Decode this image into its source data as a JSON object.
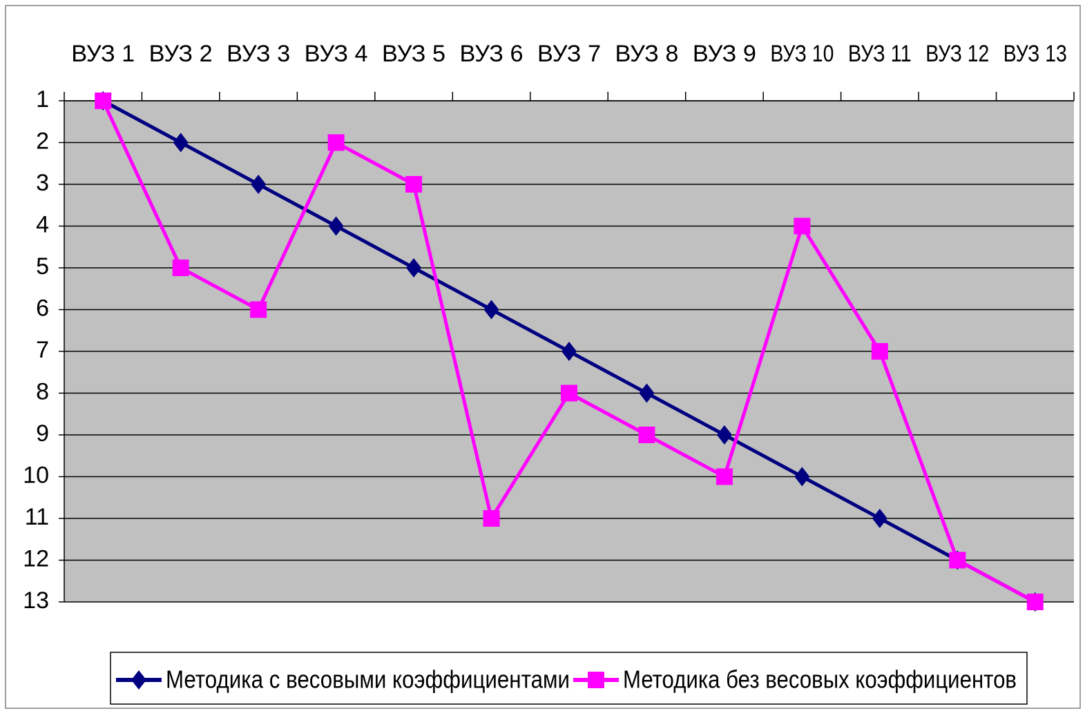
{
  "chart_data": {
    "type": "line",
    "categories": [
      "ВУЗ 1",
      "ВУЗ 2",
      "ВУЗ 3",
      "ВУЗ 4",
      "ВУЗ 5",
      "ВУЗ 6",
      "ВУЗ 7",
      "ВУЗ 8",
      "ВУЗ 9",
      "ВУЗ 10",
      "ВУЗ 11",
      "ВУЗ 12",
      "ВУЗ 13"
    ],
    "series": [
      {
        "name": "Методика с весовыми коэффициентами",
        "color": "#000080",
        "marker": "diamond",
        "values": [
          1,
          2,
          3,
          4,
          5,
          6,
          7,
          8,
          9,
          10,
          11,
          12,
          13
        ]
      },
      {
        "name": "Методика без весовых коэффициентов",
        "color": "#ff00ff",
        "marker": "square",
        "values": [
          1,
          5,
          6,
          2,
          3,
          11,
          8,
          9,
          10,
          4,
          7,
          12,
          13
        ]
      }
    ],
    "ylim": [
      1,
      13
    ],
    "y_inverted": true,
    "yticks": [
      1,
      2,
      3,
      4,
      5,
      6,
      7,
      8,
      9,
      10,
      11,
      12,
      13
    ],
    "grid": true,
    "legend": "bottom",
    "plot_color": "#c0c0c0"
  }
}
